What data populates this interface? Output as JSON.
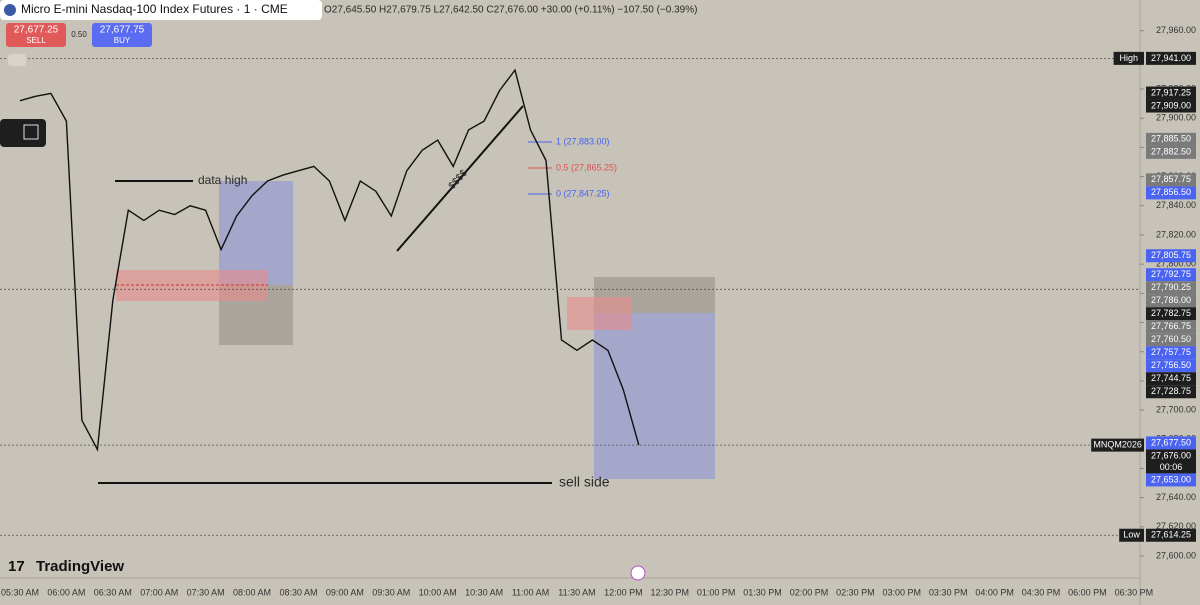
{
  "header": {
    "title": "Micro E-mini Nasdaq-100 Index Futures · 1 · CME",
    "ohlc": "O27,645.50 H27,679.75 L27,642.50 C27,676.00 +30.00 (+0.11%) −107.50 (−0.39%)",
    "sell_price": "27,677.25",
    "sell_label": "SELL",
    "spread": "0.50",
    "buy_price": "27,677.75",
    "buy_label": "BUY"
  },
  "branding": "TradingView",
  "annotations": {
    "data_high": "data high",
    "sell_side": "sell side",
    "liquidity": "$$$$",
    "fib_1": "1 (27,883.00)",
    "fib_05": "0.5 (27,865.25)",
    "fib_0": "0 (27,847.25)"
  },
  "chart_data": {
    "type": "line",
    "color": "#111111",
    "categories": [
      "05:30 AM",
      null,
      null,
      "06:00 AM",
      null,
      null,
      "06:30 AM",
      null,
      null,
      "07:00 AM",
      null,
      null,
      "07:30 AM",
      null,
      null,
      "08:00 AM",
      null,
      null,
      "08:30 AM",
      null,
      null,
      "09:00 AM",
      null,
      null,
      "09:30 AM",
      null,
      null,
      "10:00 AM",
      null,
      null,
      "10:30 AM",
      null,
      null,
      "11:00 AM",
      null,
      null,
      "11:30 AM",
      null,
      null,
      "12:00 PM",
      null,
      null,
      "12:30 PM",
      null,
      null,
      "01:00 PM",
      null,
      null,
      "01:30 PM",
      null,
      null,
      "02:00 PM",
      null,
      null,
      "02:30 PM",
      null,
      null,
      "03:00 PM",
      null,
      null,
      "03:30 PM",
      null,
      null,
      "04:00 PM",
      null,
      null,
      "04:30 PM",
      null,
      null,
      "06:00 PM",
      null,
      null,
      "06:30 PM"
    ],
    "values": [
      27912,
      27915,
      27917,
      27898,
      27693,
      27673,
      27775,
      27837,
      27830,
      27837,
      27834,
      27840,
      27837,
      27810,
      27833,
      27847,
      27857,
      27861,
      27864,
      27867,
      27857,
      27830,
      27857,
      27850,
      27833,
      27864,
      27878,
      27885,
      27867,
      27892,
      27898,
      27919,
      27933,
      27892,
      27871,
      27748,
      27741,
      27748,
      27741,
      27714,
      27676,
      null,
      null,
      null,
      null,
      null,
      null,
      null,
      null,
      null,
      null,
      null,
      null,
      null,
      null,
      null,
      null,
      null,
      null,
      null,
      null,
      null,
      null,
      null,
      null,
      null,
      null,
      null,
      null,
      null,
      null,
      null,
      null
    ],
    "ylim": [
      27587,
      27981
    ],
    "yticks": [
      {
        "value": 27600,
        "label": "27,600.00"
      },
      {
        "value": 27620,
        "label": "27,620.00"
      },
      {
        "value": 27640,
        "label": "27,640.00"
      },
      {
        "value": 27660,
        "label": "27,660.00"
      },
      {
        "value": 27680,
        "label": "27,680.00"
      },
      {
        "value": 27700,
        "label": "27,700.00"
      },
      {
        "value": 27720,
        "label": "27,720.00"
      },
      {
        "value": 27740,
        "label": "27,740.00"
      },
      {
        "value": 27760,
        "label": "27,760.00"
      },
      {
        "value": 27780,
        "label": "27,780.00"
      },
      {
        "value": 27800,
        "label": "27,800.00"
      },
      {
        "value": 27820,
        "label": "27,820.00"
      },
      {
        "value": 27840,
        "label": "27,840.00"
      },
      {
        "value": 27860,
        "label": "27,860.00"
      },
      {
        "value": 27880,
        "label": "27,880.00"
      },
      {
        "value": 27900,
        "label": "27,900.00"
      },
      {
        "value": 27920,
        "label": "27,920.00"
      },
      {
        "value": 27940,
        "label": "27,940.00"
      },
      {
        "value": 27960,
        "label": "27,960.00"
      }
    ],
    "price_labels": [
      {
        "value": 27941,
        "label": "27,941.00",
        "color": "#1e1e1e",
        "tag": "High",
        "dashed": true
      },
      {
        "value": 27917.25,
        "label": "27,917.25",
        "color": "#1e1e1e"
      },
      {
        "value": 27909,
        "label": "27,909.00",
        "color": "#1e1e1e"
      },
      {
        "value": 27885.5,
        "label": "27,885.50",
        "color": "#7a7a7a"
      },
      {
        "value": 27882.5,
        "label": "27,882.50",
        "color": "#7a7a7a"
      },
      {
        "value": 27857.75,
        "label": "27,857.75",
        "color": "#7a7a7a"
      },
      {
        "value": 27856.5,
        "label": "27,856.50",
        "color": "#4a63f0"
      },
      {
        "value": 27805.75,
        "label": "27,805.75",
        "color": "#4a63f0"
      },
      {
        "value": 27792.75,
        "label": "27,792.75",
        "color": "#4a63f0"
      },
      {
        "value": 27790.25,
        "label": "27,790.25",
        "color": "#7a7a7a"
      },
      {
        "value": 27786,
        "label": "27,786.00",
        "color": "#7a7a7a"
      },
      {
        "value": 27782.75,
        "label": "27,782.75",
        "color": "#1e1e1e",
        "dashed": true
      },
      {
        "value": 27766.75,
        "label": "27,766.75",
        "color": "#7a7a7a"
      },
      {
        "value": 27760.5,
        "label": "27,760.50",
        "color": "#7a7a7a"
      },
      {
        "value": 27757.75,
        "label": "27,757.75",
        "color": "#4a63f0"
      },
      {
        "value": 27756.5,
        "label": "27,756.50",
        "color": "#4a63f0"
      },
      {
        "value": 27744.75,
        "label": "27,744.75",
        "color": "#1e1e1e"
      },
      {
        "value": 27728.75,
        "label": "27,728.75",
        "color": "#1e1e1e"
      },
      {
        "value": 27677.5,
        "label": "27,677.50",
        "color": "#4a63f0"
      },
      {
        "value": 27676,
        "label": "27,676.00",
        "color": "#1e1e1e",
        "tag": "MNQM2026",
        "sub": "00:06",
        "dashed": true
      },
      {
        "value": 27653,
        "label": "27,653.00",
        "color": "#4a63f0"
      },
      {
        "value": 27614.25,
        "label": "27,614.25",
        "color": "#1e1e1e",
        "tag": "Low",
        "dashed": true
      }
    ]
  }
}
